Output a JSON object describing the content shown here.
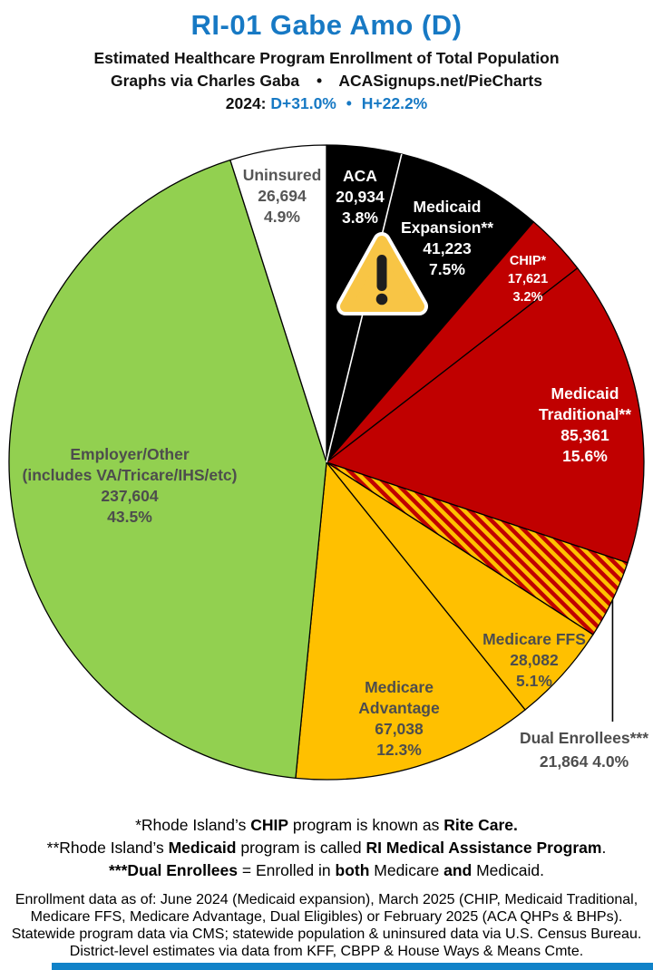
{
  "header": {
    "title": "RI-01 Gabe Amo (D)",
    "subtitle": "Estimated Healthcare Program Enrollment of Total Population",
    "byline_left": "Graphs via Charles Gaba",
    "byline_bullet": "•",
    "byline_right": "ACASignups.net/PieCharts",
    "year_label": "2024:",
    "partisan_lean_d": "D+31.0%",
    "lean_bullet": "•",
    "partisan_lean_h": "H+22.2%"
  },
  "colors": {
    "accent_blue": "#1779C4",
    "bottom_bar_blue": "#1082C8",
    "wedge_stroke": "#000000",
    "special_boundary_white": "#FFFFFF",
    "callout_line": "#000000",
    "warning_fill": "#F8C545",
    "warning_outline": "#FFFFFF",
    "warning_glyph": "#1E1E1E",
    "hatch_base": "#FFC000",
    "hatch_stripe": "#C00000"
  },
  "chart_data": {
    "type": "pie",
    "title": "Estimated Healthcare Program Enrollment of Total Population",
    "start_position": "12-o'clock, clockwise",
    "legend_position": "labels-on-slices",
    "segments": [
      {
        "id": "aca",
        "name": "ACA",
        "value": 20934,
        "pct": 3.8,
        "color": "#000000",
        "lines": [
          "ACA",
          "20,934",
          "3.8%"
        ]
      },
      {
        "id": "medicaid-expansion",
        "name": "Medicaid Expansion**",
        "value": 41223,
        "pct": 7.5,
        "color": "#000000",
        "lines": [
          "Medicaid",
          "Expansion**",
          "41,223",
          "7.5%"
        ]
      },
      {
        "id": "chip",
        "name": "CHIP*",
        "value": 17621,
        "pct": 3.2,
        "color": "#C00000",
        "lines": [
          "CHIP*",
          "17,621",
          "3.2%"
        ]
      },
      {
        "id": "medicaid-traditional",
        "name": "Medicaid Traditional**",
        "value": 85361,
        "pct": 15.6,
        "color": "#C00000",
        "lines": [
          "Medicaid",
          "Traditional**",
          "85,361",
          "15.6%"
        ]
      },
      {
        "id": "dual-enrollees",
        "name": "Dual Enrollees***",
        "value": 21864,
        "pct": 4.0,
        "color": "hatch",
        "lines": [
          "Dual Enrollees***",
          "21,864 4.0%"
        ]
      },
      {
        "id": "medicare-ffs",
        "name": "Medicare FFS",
        "value": 28082,
        "pct": 5.1,
        "color": "#FFC000",
        "lines": [
          "Medicare FFS",
          "28,082",
          "5.1%"
        ]
      },
      {
        "id": "medicare-advantage",
        "name": "Medicare Advantage",
        "value": 67038,
        "pct": 12.3,
        "color": "#FFC000",
        "lines": [
          "Medicare",
          "Advantage",
          "67,038",
          "12.3%"
        ]
      },
      {
        "id": "employer-other",
        "name": "Employer/Other (includes VA/Tricare/IHS/etc)",
        "value": 237604,
        "pct": 43.5,
        "color": "#92D050",
        "lines": [
          "Employer/Other",
          "(includes VA/Tricare/IHS/etc)",
          "237,604",
          "43.5%"
        ]
      },
      {
        "id": "uninsured",
        "name": "Uninsured",
        "value": 26694,
        "pct": 4.9,
        "color": "#FFFFFF",
        "lines": [
          "Uninsured",
          "26,694",
          "4.9%"
        ]
      }
    ]
  },
  "footnotes": [
    {
      "runs": [
        {
          "t": "*Rhode Island’s "
        },
        {
          "t": "CHIP",
          "b": 1
        },
        {
          "t": " program is known as "
        },
        {
          "t": "Rite Care.",
          "b": 1
        }
      ]
    },
    {
      "runs": [
        {
          "t": "**Rhode Island’s "
        },
        {
          "t": "Medicaid",
          "b": 1
        },
        {
          "t": " program is called "
        },
        {
          "t": "RI Medical Assistance Program",
          "b": 1
        },
        {
          "t": "."
        }
      ]
    },
    {
      "runs": [
        {
          "t": "***Dual Enrollees",
          "b": 1
        },
        {
          "t": " = Enrolled in "
        },
        {
          "t": "both",
          "b": 1
        },
        {
          "t": " Medicare "
        },
        {
          "t": "and",
          "b": 1
        },
        {
          "t": " Medicaid."
        }
      ]
    }
  ],
  "fine_print": [
    "Enrollment data as of: June 2024 (Medicaid expansion), March 2025 (CHIP, Medicaid Traditional,",
    "Medicare FFS, Medicare Advantage, Dual Eligibles) or February 2025 (ACA QHPs & BHPs).",
    "Statewide program data via CMS; statewide population & uninsured data via U.S. Census Bureau.",
    "District-level estimates via data from KFF, CBPP & House Ways & Means Cmte."
  ]
}
